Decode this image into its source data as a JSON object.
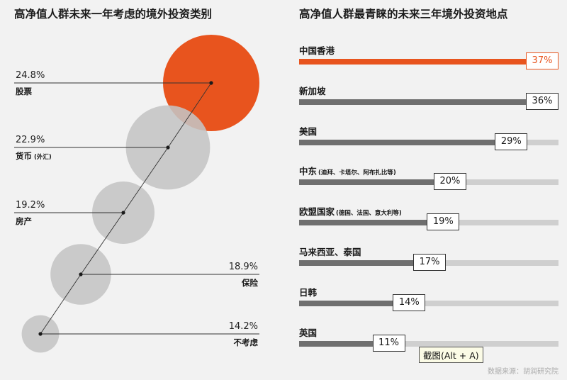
{
  "chart_data": [
    {
      "type": "bubble",
      "title": "高净值人群未来一年考虑的境外投资类别",
      "unit": "%",
      "categories": [
        "股票",
        "货币",
        "房产",
        "保险",
        "不考虑"
      ],
      "category_notes": [
        "",
        "(外汇)",
        "",
        "",
        ""
      ],
      "values": [
        24.8,
        22.9,
        19.2,
        18.9,
        14.2
      ],
      "value_labels": [
        "24.8%",
        "22.9%",
        "19.2%",
        "18.9%",
        "14.2%"
      ],
      "highlight_index": 0,
      "label_sides": [
        "left",
        "left",
        "left",
        "right",
        "right"
      ]
    },
    {
      "type": "bar",
      "orientation": "horizontal",
      "title": "高净值人群最青睐的未来三年境外投资地点",
      "unit": "%",
      "categories": [
        "中国香港",
        "新加坡",
        "美国",
        "中东",
        "欧盟国家",
        "马来西亚、泰国",
        "日韩",
        "英国"
      ],
      "category_notes": [
        "",
        "",
        "",
        "(迪拜、卡塔尔、阿布扎比等)",
        "(德国、法国、意大利等)",
        "",
        "",
        ""
      ],
      "values": [
        37,
        36,
        29,
        20,
        19,
        17,
        14,
        11
      ],
      "value_labels": [
        "37%",
        "36%",
        "29%",
        "20%",
        "19%",
        "17%",
        "14%",
        "11%"
      ],
      "xlim": [
        0,
        37
      ],
      "highlight_index": 0
    }
  ],
  "colors": {
    "highlight": "#e8541e",
    "bubble": "#c4c4c4",
    "bar_fill": "#6f6f6f",
    "bar_track": "#cfcfcf",
    "highlight_track": "#f3c4ad"
  },
  "tooltip": "截图(Alt + A)",
  "source": "数据来源：胡润研究院"
}
